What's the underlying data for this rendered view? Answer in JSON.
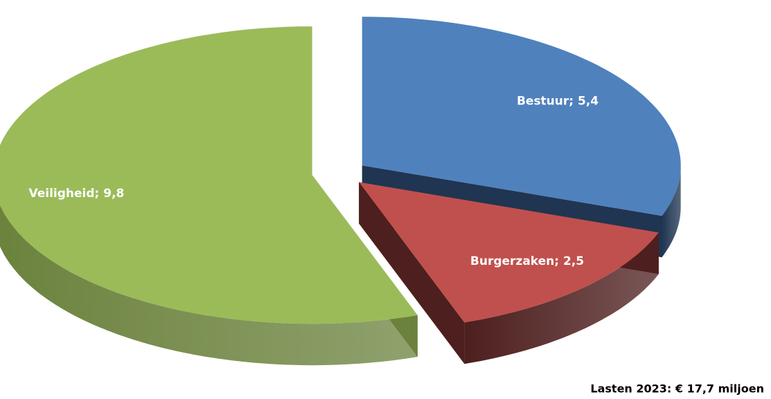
{
  "chart_data": {
    "type": "pie3d",
    "categories": [
      "Bestuur",
      "Burgerzaken",
      "Veiligheid"
    ],
    "values": [
      5.4,
      2.5,
      9.8
    ],
    "value_labels": [
      "Bestuur; 5,4",
      "Burgerzaken; 2,5",
      "Veiligheid; 9,8"
    ],
    "colors": [
      "#4f81bd",
      "#c0504d",
      "#9bbb59"
    ],
    "side_colors": [
      "#1f3552",
      "#4d1f1e",
      "#6b823d"
    ],
    "note": "Lasten 2023: € 17,7 miljoen"
  }
}
